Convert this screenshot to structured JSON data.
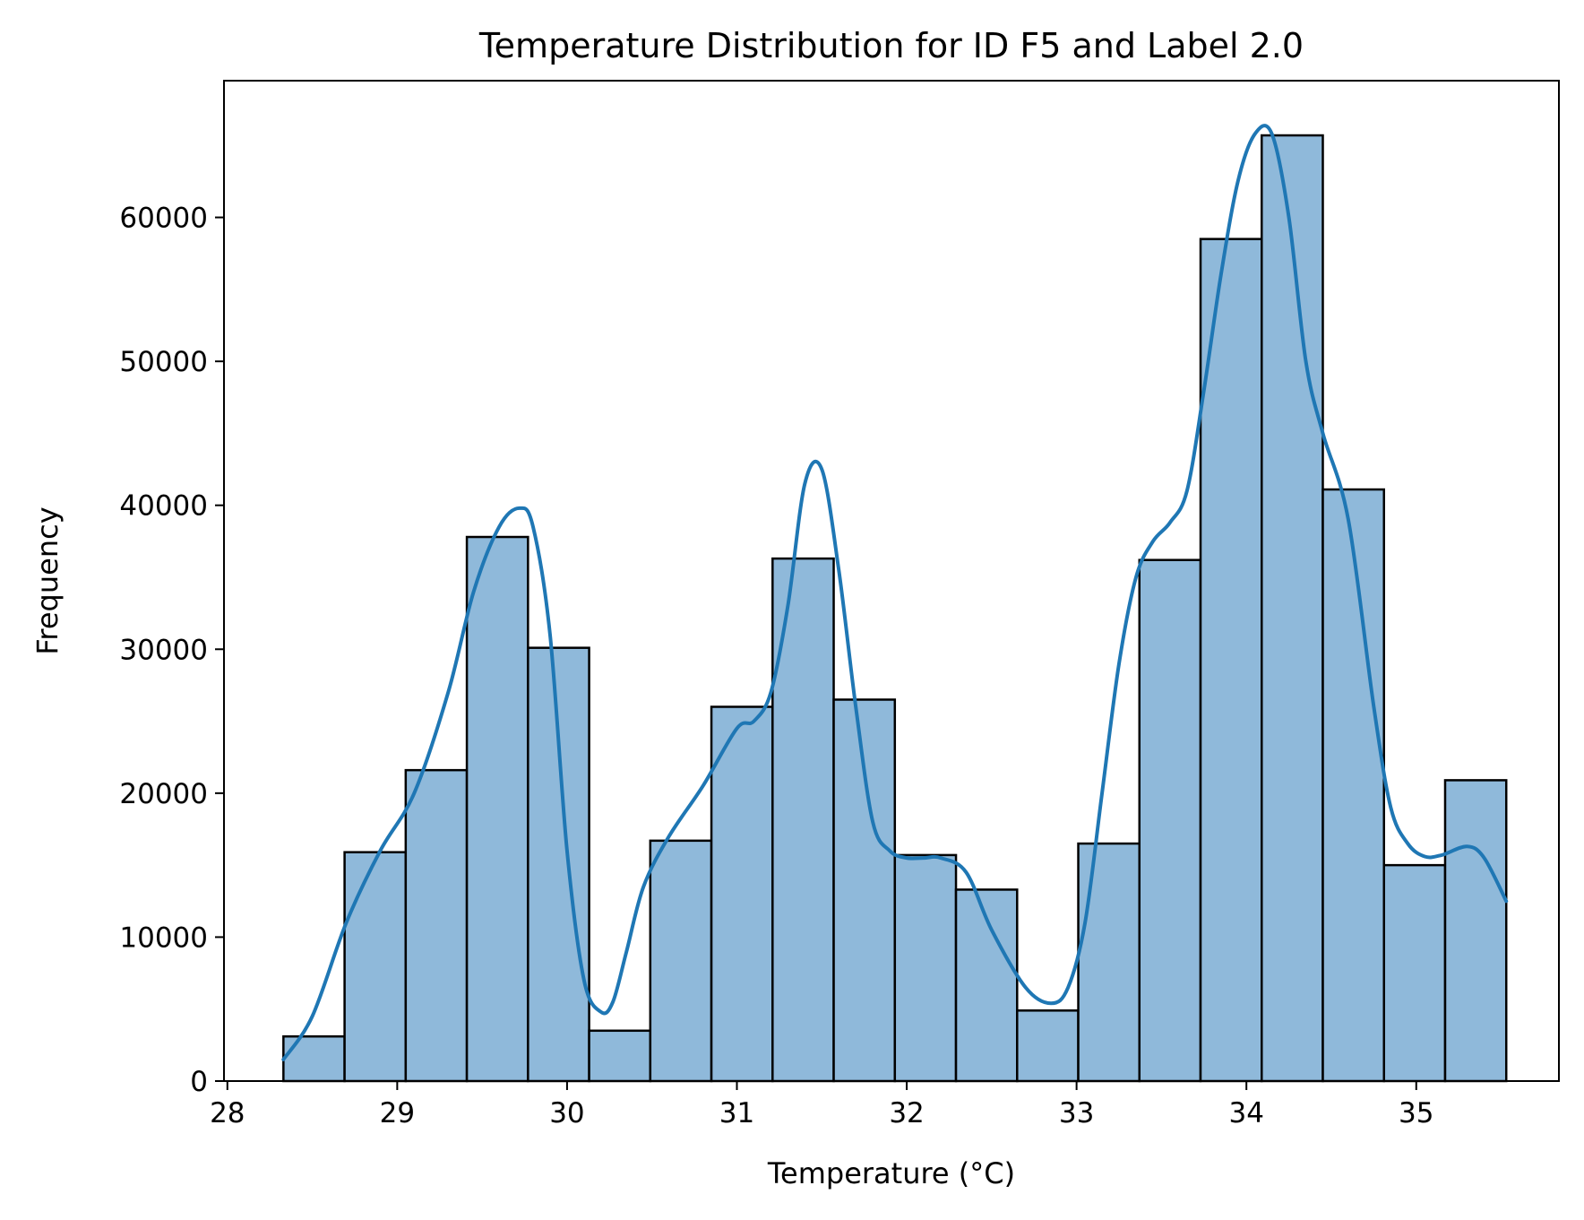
{
  "chart_data": {
    "type": "bar",
    "subtype": "histogram_with_kde",
    "title": "Temperature Distribution for ID F5 and Label 2.0",
    "xlabel": "Temperature (°C)",
    "ylabel": "Frequency",
    "xlim": [
      27.98,
      35.84
    ],
    "ylim": [
      0,
      69500
    ],
    "xticks": [
      28,
      29,
      30,
      31,
      32,
      33,
      34,
      35
    ],
    "yticks": [
      0,
      10000,
      20000,
      30000,
      40000,
      50000,
      60000
    ],
    "grid": false,
    "colors": {
      "bar_fill": "#8fb9da",
      "bar_edge": "#000000",
      "kde_line": "#1f77b4"
    },
    "bins": [
      {
        "x0": 28.33,
        "x1": 28.69,
        "value": 3100
      },
      {
        "x0": 28.69,
        "x1": 29.05,
        "value": 15900
      },
      {
        "x0": 29.05,
        "x1": 29.41,
        "value": 21600
      },
      {
        "x0": 29.41,
        "x1": 29.77,
        "value": 37800
      },
      {
        "x0": 29.77,
        "x1": 30.13,
        "value": 30100
      },
      {
        "x0": 30.13,
        "x1": 30.49,
        "value": 3500
      },
      {
        "x0": 30.49,
        "x1": 30.85,
        "value": 16700
      },
      {
        "x0": 30.85,
        "x1": 31.21,
        "value": 26000
      },
      {
        "x0": 31.21,
        "x1": 31.57,
        "value": 36300
      },
      {
        "x0": 31.57,
        "x1": 31.93,
        "value": 26500
      },
      {
        "x0": 31.93,
        "x1": 32.29,
        "value": 15700
      },
      {
        "x0": 32.29,
        "x1": 32.65,
        "value": 13300
      },
      {
        "x0": 32.65,
        "x1": 33.01,
        "value": 4900
      },
      {
        "x0": 33.01,
        "x1": 33.37,
        "value": 16500
      },
      {
        "x0": 33.37,
        "x1": 33.73,
        "value": 36200
      },
      {
        "x0": 33.73,
        "x1": 34.09,
        "value": 58500
      },
      {
        "x0": 34.09,
        "x1": 34.45,
        "value": 65700
      },
      {
        "x0": 34.45,
        "x1": 34.81,
        "value": 41100
      },
      {
        "x0": 34.81,
        "x1": 35.17,
        "value": 15000
      },
      {
        "x0": 35.17,
        "x1": 35.53,
        "value": 20900
      }
    ],
    "kde": {
      "x": [
        28.33,
        28.5,
        28.7,
        28.9,
        29.1,
        29.3,
        29.45,
        29.6,
        29.72,
        29.8,
        29.9,
        30.0,
        30.1,
        30.2,
        30.27,
        30.35,
        30.45,
        30.6,
        30.8,
        31.0,
        31.1,
        31.2,
        31.3,
        31.4,
        31.5,
        31.6,
        31.7,
        31.8,
        31.9,
        32.0,
        32.1,
        32.2,
        32.35,
        32.5,
        32.7,
        32.85,
        32.95,
        33.05,
        33.15,
        33.25,
        33.35,
        33.45,
        33.55,
        33.65,
        33.75,
        33.85,
        33.95,
        34.05,
        34.15,
        34.25,
        34.35,
        34.45,
        34.6,
        34.75,
        34.85,
        34.95,
        35.05,
        35.15,
        35.3,
        35.4,
        35.53
      ],
      "y": [
        1500,
        4500,
        11000,
        16000,
        20000,
        27000,
        34000,
        38500,
        39800,
        38500,
        31000,
        16000,
        7000,
        4800,
        5500,
        9000,
        13500,
        17000,
        20500,
        24500,
        25000,
        27000,
        33000,
        41500,
        42500,
        35500,
        26000,
        18000,
        16000,
        15500,
        15500,
        15500,
        14500,
        10500,
        6500,
        5400,
        6500,
        11000,
        20000,
        29000,
        35000,
        37500,
        38800,
        41000,
        48000,
        56000,
        62500,
        65800,
        65800,
        60000,
        50000,
        45000,
        39000,
        26000,
        19000,
        16500,
        15600,
        15700,
        16300,
        15500,
        12500
      ]
    }
  }
}
